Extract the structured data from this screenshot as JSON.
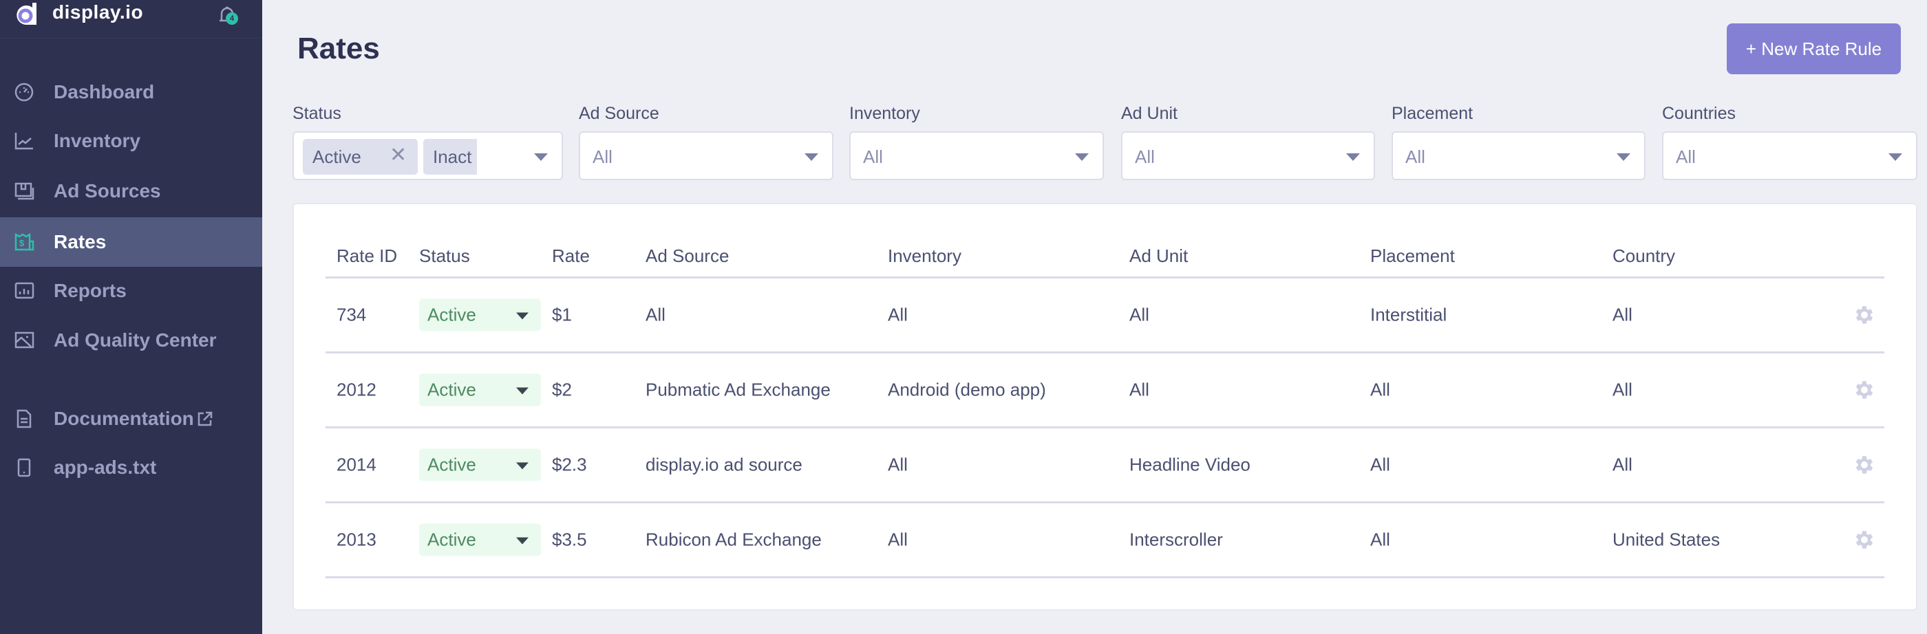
{
  "app": {
    "brand": "display.io",
    "notifications": "4"
  },
  "sidebar": {
    "items": [
      {
        "label": "Dashboard",
        "icon": "dashboard-gauge-icon"
      },
      {
        "label": "Inventory",
        "icon": "line-chart-icon"
      },
      {
        "label": "Ad Sources",
        "icon": "ad-sources-icon"
      },
      {
        "label": "Rates",
        "icon": "rates-dollar-icon",
        "active": true
      },
      {
        "label": "Reports",
        "icon": "bar-chart-icon"
      },
      {
        "label": "Ad Quality Center",
        "icon": "image-icon"
      },
      {
        "label": "Documentation",
        "icon": "document-icon",
        "external": true
      },
      {
        "label": "app-ads.txt",
        "icon": "mobile-icon"
      }
    ]
  },
  "page": {
    "title": "Rates",
    "new_button": "+ New Rate Rule"
  },
  "filters": {
    "status": {
      "label": "Status",
      "chips": [
        "Active",
        "Inact"
      ]
    },
    "ad_source": {
      "label": "Ad Source",
      "value": "All"
    },
    "inventory": {
      "label": "Inventory",
      "value": "All"
    },
    "ad_unit": {
      "label": "Ad Unit",
      "value": "All"
    },
    "placement": {
      "label": "Placement",
      "value": "All"
    },
    "countries": {
      "label": "Countries",
      "value": "All"
    }
  },
  "table": {
    "columns": [
      "Rate ID",
      "Status",
      "Rate",
      "Ad Source",
      "Inventory",
      "Ad Unit",
      "Placement",
      "Country"
    ],
    "rows": [
      {
        "id": "734",
        "status": "Active",
        "rate": "$1",
        "ad_source": "All",
        "inventory": "All",
        "ad_unit": "All",
        "placement": "Interstitial",
        "country": "All"
      },
      {
        "id": "2012",
        "status": "Active",
        "rate": "$2",
        "ad_source": "Pubmatic Ad Exchange",
        "inventory": "Android (demo app)",
        "ad_unit": "All",
        "placement": "All",
        "country": "All"
      },
      {
        "id": "2014",
        "status": "Active",
        "rate": "$2.3",
        "ad_source": "display.io ad source",
        "inventory": "All",
        "ad_unit": "Headline Video",
        "placement": "All",
        "country": "All"
      },
      {
        "id": "2013",
        "status": "Active",
        "rate": "$3.5",
        "ad_source": "Rubicon Ad Exchange",
        "inventory": "All",
        "ad_unit": "Interscroller",
        "placement": "All",
        "country": "United States"
      }
    ]
  },
  "colors": {
    "sidebar": "#2e3150",
    "active": "#525a80",
    "accent": "#8481d4",
    "active_status_bg": "#eafaee",
    "teal": "#2ebfa8"
  }
}
